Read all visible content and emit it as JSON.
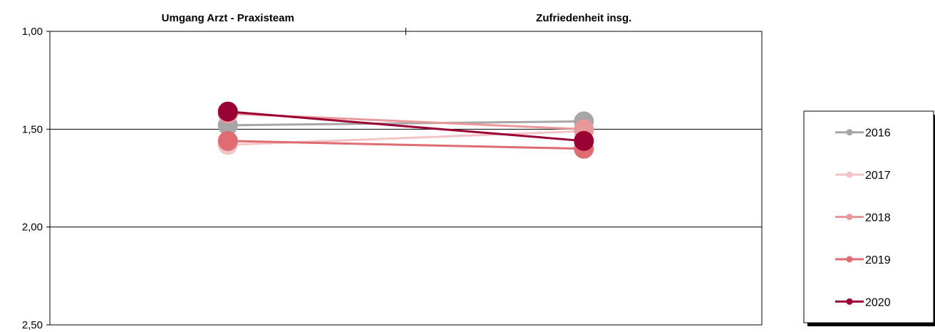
{
  "chart_data": {
    "type": "line",
    "categories": [
      "Umgang Arzt - Praxisteam",
      "Zufriedenheit insg."
    ],
    "y_axis": {
      "range": [
        1.0,
        2.5
      ],
      "reversed": true,
      "ticks": [
        1.0,
        1.5,
        2.0,
        2.5
      ],
      "tick_labels": [
        "1,00",
        "1,50",
        "2,00",
        "2,50"
      ],
      "gridlines": true
    },
    "legend_position": "right",
    "series": [
      {
        "name": "2016",
        "color": "#a6a6a6",
        "values": [
          1.48,
          1.46
        ]
      },
      {
        "name": "2017",
        "color": "#f2c4c6",
        "values": [
          1.58,
          1.51
        ]
      },
      {
        "name": "2018",
        "color": "#e8999c",
        "values": [
          1.42,
          1.5
        ]
      },
      {
        "name": "2019",
        "color": "#df6b73",
        "values": [
          1.56,
          1.6
        ]
      },
      {
        "name": "2020",
        "color": "#990033",
        "values": [
          1.41,
          1.56
        ]
      }
    ]
  }
}
